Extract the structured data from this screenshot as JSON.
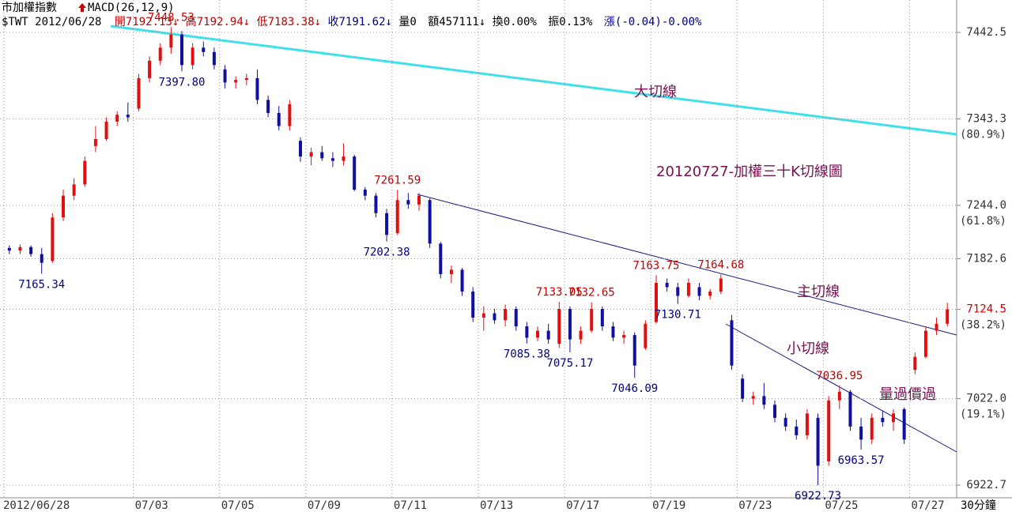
{
  "chart_data": {
    "type": "candlestick",
    "header": {
      "name": "市加權指數",
      "indicator": "MACD(26,12,9)",
      "symbol": "$TWT 2012/06/28",
      "open": "開7192.13↓",
      "high": "高7192.94↓",
      "low": "低7183.38↓",
      "close": "收7191.62↓",
      "volume": "量0",
      "amount": "額457111↓",
      "turnover": "換0.00%",
      "amplitude": "振0.13%",
      "change": "漲(-0.04)-0.00%"
    },
    "interval": "30分鐘",
    "annotations": [
      "大切線",
      "20120727-加權三十K切線圖",
      "主切線",
      "小切線",
      "量過價過"
    ],
    "categories": [
      "2012/06/28",
      null,
      null,
      null,
      null,
      null,
      null,
      null,
      null,
      null,
      null,
      null,
      "07/03",
      null,
      null,
      null,
      null,
      null,
      null,
      null,
      "07/05",
      null,
      null,
      null,
      null,
      null,
      null,
      null,
      "07/09",
      null,
      null,
      null,
      null,
      null,
      null,
      null,
      "07/11",
      null,
      null,
      null,
      null,
      null,
      null,
      null,
      "07/13",
      null,
      null,
      null,
      null,
      null,
      null,
      null,
      "07/17",
      null,
      null,
      null,
      null,
      null,
      null,
      null,
      "07/19",
      null,
      null,
      null,
      null,
      null,
      null,
      null,
      "07/23",
      null,
      null,
      null,
      null,
      null,
      null,
      null,
      "07/25",
      null,
      null,
      null,
      null,
      null,
      null,
      null,
      "07/27",
      null,
      null,
      null
    ],
    "open": [
      7195,
      7192,
      7196,
      7188,
      7180,
      7230,
      7255,
      7268,
      7312,
      7320,
      7340,
      7348,
      7355,
      7390,
      7410,
      7425,
      7440,
      7405,
      7425,
      7420,
      7400,
      7385,
      7388,
      7390,
      7365,
      7350,
      7335,
      7318,
      7300,
      7305,
      7298,
      7295,
      7300,
      7262,
      7255,
      7235,
      7212,
      7250,
      7245,
      7250,
      7200,
      7165,
      7170,
      7145,
      7115,
      7120,
      7112,
      7125,
      7105,
      7092,
      7100,
      7085,
      7125,
      7090,
      7100,
      7125,
      7105,
      7092,
      7095,
      7080,
      7110,
      7155,
      7150,
      7140,
      7150,
      7140,
      7145,
      7112,
      7045,
      7022,
      7025,
      7015,
      7000,
      6990,
      6980,
      7000,
      6950,
      7020,
      7030,
      6990,
      6975,
      7000,
      6995,
      7010,
      7055,
      7070,
      7100,
      7108
    ],
    "high": [
      7198,
      7199,
      7198,
      7195,
      7235,
      7262,
      7275,
      7300,
      7335,
      7345,
      7352,
      7362,
      7395,
      7415,
      7430,
      7448.53,
      7444,
      7430,
      7432,
      7425,
      7405,
      7392,
      7395,
      7400,
      7370,
      7358,
      7365,
      7322,
      7310,
      7312,
      7305,
      7315,
      7302,
      7265,
      7258,
      7240,
      7261.59,
      7258,
      7258,
      7252,
      7202,
      7175,
      7172,
      7150,
      7128,
      7125,
      7130,
      7128,
      7110,
      7105,
      7108,
      7133.05,
      7128,
      7105,
      7132.65,
      7128,
      7110,
      7100,
      7098,
      7112,
      7163.75,
      7160,
      7155,
      7160,
      7155,
      7148,
      7164.68,
      7118,
      7050,
      7030,
      7040,
      7020,
      7005,
      6998,
      7010,
      7005,
      7025,
      7036.95,
      7032,
      7000,
      7005,
      7008,
      7010,
      7012,
      7075,
      7105,
      7115,
      7132
    ],
    "low": [
      7188,
      7188,
      7185,
      7165.34,
      7178,
      7226,
      7250,
      7265,
      7305,
      7318,
      7335,
      7340,
      7352,
      7385,
      7405,
      7418,
      7397.8,
      7400,
      7415,
      7400,
      7378,
      7378,
      7382,
      7360,
      7345,
      7330,
      7330,
      7294,
      7290,
      7295,
      7288,
      7290,
      7260,
      7250,
      7230,
      7202.38,
      7210,
      7240,
      7238,
      7195,
      7160,
      7155,
      7140,
      7110,
      7100,
      7108,
      7105,
      7100,
      7085.38,
      7088,
      7085,
      7080,
      7075.17,
      7085,
      7098,
      7100,
      7088,
      7085,
      7046.09,
      7078,
      7108,
      7145,
      7130.71,
      7138,
      7135,
      7136,
      7142,
      7055,
      7018,
      7015,
      7010,
      6995,
      6985,
      6975,
      6975,
      6922.73,
      6945,
      7010,
      6985,
      6963.57,
      6970,
      6990,
      6985,
      6970,
      7050,
      7068,
      7095,
      7105
    ],
    "close": [
      7192,
      7196,
      7188,
      7178,
      7230,
      7255,
      7268,
      7295,
      7320,
      7340,
      7348,
      7345,
      7390,
      7410,
      7425,
      7440,
      7405,
      7425,
      7420,
      7405,
      7385,
      7388,
      7390,
      7365,
      7350,
      7335,
      7360,
      7300,
      7305,
      7298,
      7295,
      7300,
      7262,
      7255,
      7235,
      7210,
      7250,
      7245,
      7255,
      7200,
      7165,
      7170,
      7145,
      7115,
      7120,
      7112,
      7125,
      7105,
      7092,
      7100,
      7090,
      7125,
      7090,
      7100,
      7125,
      7105,
      7092,
      7095,
      7060,
      7108,
      7155,
      7150,
      7140,
      7155,
      7140,
      7145,
      7160,
      7060,
      7022,
      7025,
      7015,
      7000,
      6990,
      6980,
      7005,
      6945,
      7020,
      7030,
      6990,
      6975,
      7000,
      6995,
      7005,
      6975,
      7070,
      7100,
      7108,
      7124.5
    ],
    "price_labels": [
      "7165.34",
      "7448.53",
      "7397.80",
      "7261.59",
      "7202.38",
      "7133.05",
      "7132.65",
      "7085.38",
      "7075.17",
      "7046.09",
      "7163.75",
      "7130.71",
      "7164.68",
      "7036.95",
      "6963.57",
      "6922.73"
    ],
    "up_color": "#e01010",
    "down_color": "#1010a0",
    "ylim": [
      6908.2,
      7479.7
    ],
    "yticks": [
      7442.5,
      7343.3,
      {
        "value": 7244,
        "label": "7244.0"
      },
      7182.6,
      7124.5,
      {
        "value": 7022,
        "label": "7022.0"
      },
      6922.7
    ],
    "fib_labels": [
      {
        "value": 7343.3,
        "label": "(80.9%)"
      },
      {
        "value": 7244,
        "label": "(61.8%)"
      },
      {
        "value": 7124.5,
        "label": "(38.2%)"
      },
      {
        "value": 7022,
        "label": "(19.1%)"
      }
    ],
    "grid": true
  }
}
